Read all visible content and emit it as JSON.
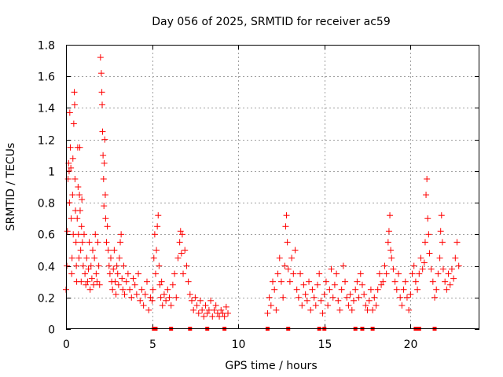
{
  "chart_data": {
    "type": "scatter",
    "title": "Day 056 of 2025, SRMTID for receiver ac59",
    "xlabel": "GPS time / hours",
    "ylabel": "SRMTID / TECUs",
    "xlim": [
      0,
      24
    ],
    "ylim": [
      0,
      1.8
    ],
    "xticks": [
      0,
      5,
      10,
      15,
      20
    ],
    "xtick_labels": [
      "0",
      "5",
      "10",
      "15",
      "20"
    ],
    "yticks": [
      0,
      0.2,
      0.4,
      0.6,
      0.8,
      1,
      1.2,
      1.4,
      1.6,
      1.8
    ],
    "ytick_labels": [
      "0",
      "0.2",
      "0.4",
      "0.6",
      "0.8",
      "1",
      "1.2",
      "1.4",
      "1.6",
      "1.8"
    ],
    "grid": true,
    "marker": "plus",
    "color": "#ff0000",
    "series": [
      {
        "name": "SRMTID",
        "points": [
          [
            0.0,
            0.25
          ],
          [
            0.05,
            0.4
          ],
          [
            0.08,
            0.62
          ],
          [
            0.12,
            0.95
          ],
          [
            0.15,
            1.05
          ],
          [
            0.18,
            1.0
          ],
          [
            0.2,
            0.8
          ],
          [
            0.22,
            1.37
          ],
          [
            0.25,
            1.15
          ],
          [
            0.28,
            1.02
          ],
          [
            0.3,
            0.7
          ],
          [
            0.33,
            0.35
          ],
          [
            0.35,
            0.45
          ],
          [
            0.38,
            0.85
          ],
          [
            0.4,
            1.08
          ],
          [
            0.42,
            0.6
          ],
          [
            0.45,
            1.3
          ],
          [
            0.48,
            1.5
          ],
          [
            0.5,
            1.42
          ],
          [
            0.52,
            0.95
          ],
          [
            0.55,
            0.75
          ],
          [
            0.58,
            0.55
          ],
          [
            0.6,
            0.4
          ],
          [
            0.62,
            0.3
          ],
          [
            0.65,
            0.7
          ],
          [
            0.68,
            1.15
          ],
          [
            0.7,
            0.9
          ],
          [
            0.72,
            0.6
          ],
          [
            0.75,
            0.45
          ],
          [
            0.78,
            0.85
          ],
          [
            0.8,
            1.15
          ],
          [
            0.82,
            0.75
          ],
          [
            0.85,
            0.5
          ],
          [
            0.88,
            0.3
          ],
          [
            0.9,
            0.65
          ],
          [
            0.92,
            0.82
          ],
          [
            0.95,
            0.55
          ],
          [
            1.0,
            0.4
          ],
          [
            1.05,
            0.6
          ],
          [
            1.1,
            0.35
          ],
          [
            1.15,
            0.28
          ],
          [
            1.2,
            0.45
          ],
          [
            1.25,
            0.3
          ],
          [
            1.3,
            0.38
          ],
          [
            1.35,
            0.55
          ],
          [
            1.4,
            0.25
          ],
          [
            1.45,
            0.4
          ],
          [
            1.5,
            0.32
          ],
          [
            1.55,
            0.5
          ],
          [
            1.6,
            0.28
          ],
          [
            1.65,
            0.45
          ],
          [
            1.7,
            0.6
          ],
          [
            1.75,
            0.35
          ],
          [
            1.8,
            0.3
          ],
          [
            1.85,
            0.55
          ],
          [
            1.9,
            0.4
          ],
          [
            1.95,
            0.28
          ],
          [
            2.0,
            1.72
          ],
          [
            2.05,
            1.62
          ],
          [
            2.08,
            1.5
          ],
          [
            2.1,
            1.42
          ],
          [
            2.12,
            1.25
          ],
          [
            2.15,
            1.1
          ],
          [
            2.18,
            0.95
          ],
          [
            2.2,
            0.78
          ],
          [
            2.22,
            1.05
          ],
          [
            2.25,
            1.2
          ],
          [
            2.28,
            0.85
          ],
          [
            2.3,
            0.7
          ],
          [
            2.35,
            0.55
          ],
          [
            2.4,
            0.65
          ],
          [
            2.45,
            0.5
          ],
          [
            2.5,
            0.4
          ],
          [
            2.55,
            0.35
          ],
          [
            2.6,
            0.45
          ],
          [
            2.65,
            0.3
          ],
          [
            2.7,
            0.25
          ],
          [
            2.75,
            0.38
          ],
          [
            2.8,
            0.5
          ],
          [
            2.85,
            0.3
          ],
          [
            2.9,
            0.22
          ],
          [
            2.95,
            0.4
          ],
          [
            3.0,
            0.35
          ],
          [
            3.05,
            0.28
          ],
          [
            3.1,
            0.45
          ],
          [
            3.15,
            0.55
          ],
          [
            3.2,
            0.6
          ],
          [
            3.25,
            0.32
          ],
          [
            3.3,
            0.25
          ],
          [
            3.35,
            0.4
          ],
          [
            3.4,
            0.22
          ],
          [
            3.5,
            0.3
          ],
          [
            3.6,
            0.35
          ],
          [
            3.7,
            0.25
          ],
          [
            3.8,
            0.2
          ],
          [
            3.9,
            0.32
          ],
          [
            4.0,
            0.28
          ],
          [
            4.1,
            0.22
          ],
          [
            4.2,
            0.35
          ],
          [
            4.3,
            0.18
          ],
          [
            4.4,
            0.25
          ],
          [
            4.5,
            0.15
          ],
          [
            4.6,
            0.22
          ],
          [
            4.7,
            0.3
          ],
          [
            4.8,
            0.12
          ],
          [
            4.9,
            0.2
          ],
          [
            5.0,
            0.18
          ],
          [
            5.05,
            0.25
          ],
          [
            5.1,
            0.45
          ],
          [
            5.15,
            0.6
          ],
          [
            5.2,
            0.35
          ],
          [
            5.25,
            0.5
          ],
          [
            5.3,
            0.65
          ],
          [
            5.35,
            0.72
          ],
          [
            5.4,
            0.4
          ],
          [
            5.45,
            0.28
          ],
          [
            5.5,
            0.2
          ],
          [
            5.55,
            0.3
          ],
          [
            5.6,
            0.15
          ],
          [
            5.7,
            0.22
          ],
          [
            5.8,
            0.18
          ],
          [
            5.9,
            0.25
          ],
          [
            6.0,
            0.2
          ],
          [
            6.1,
            0.15
          ],
          [
            6.2,
            0.28
          ],
          [
            6.3,
            0.35
          ],
          [
            6.4,
            0.2
          ],
          [
            6.5,
            0.45
          ],
          [
            6.6,
            0.55
          ],
          [
            6.65,
            0.62
          ],
          [
            6.7,
            0.48
          ],
          [
            6.75,
            0.6
          ],
          [
            6.8,
            0.35
          ],
          [
            6.9,
            0.5
          ],
          [
            7.0,
            0.4
          ],
          [
            7.1,
            0.3
          ],
          [
            7.2,
            0.22
          ],
          [
            7.3,
            0.18
          ],
          [
            7.4,
            0.12
          ],
          [
            7.5,
            0.2
          ],
          [
            7.6,
            0.15
          ],
          [
            7.7,
            0.1
          ],
          [
            7.8,
            0.18
          ],
          [
            7.9,
            0.12
          ],
          [
            8.0,
            0.08
          ],
          [
            8.1,
            0.15
          ],
          [
            8.2,
            0.1
          ],
          [
            8.3,
            0.12
          ],
          [
            8.4,
            0.18
          ],
          [
            8.5,
            0.08
          ],
          [
            8.6,
            0.12
          ],
          [
            8.7,
            0.15
          ],
          [
            8.8,
            0.1
          ],
          [
            8.9,
            0.08
          ],
          [
            9.0,
            0.12
          ],
          [
            9.1,
            0.1
          ],
          [
            9.2,
            0.08
          ],
          [
            9.3,
            0.14
          ],
          [
            9.4,
            0.1
          ],
          [
            11.7,
            0.1
          ],
          [
            11.8,
            0.2
          ],
          [
            11.9,
            0.15
          ],
          [
            12.0,
            0.3
          ],
          [
            12.1,
            0.25
          ],
          [
            12.2,
            0.12
          ],
          [
            12.3,
            0.35
          ],
          [
            12.4,
            0.45
          ],
          [
            12.5,
            0.3
          ],
          [
            12.6,
            0.2
          ],
          [
            12.7,
            0.4
          ],
          [
            12.75,
            0.65
          ],
          [
            12.8,
            0.72
          ],
          [
            12.85,
            0.55
          ],
          [
            12.9,
            0.38
          ],
          [
            13.0,
            0.3
          ],
          [
            13.1,
            0.45
          ],
          [
            13.2,
            0.35
          ],
          [
            13.3,
            0.5
          ],
          [
            13.4,
            0.25
          ],
          [
            13.5,
            0.2
          ],
          [
            13.6,
            0.35
          ],
          [
            13.7,
            0.15
          ],
          [
            13.8,
            0.28
          ],
          [
            13.9,
            0.22
          ],
          [
            14.0,
            0.18
          ],
          [
            14.1,
            0.3
          ],
          [
            14.2,
            0.12
          ],
          [
            14.3,
            0.25
          ],
          [
            14.4,
            0.2
          ],
          [
            14.5,
            0.15
          ],
          [
            14.6,
            0.28
          ],
          [
            14.7,
            0.35
          ],
          [
            14.8,
            0.18
          ],
          [
            14.9,
            0.1
          ],
          [
            15.0,
            0.22
          ],
          [
            15.1,
            0.3
          ],
          [
            15.2,
            0.15
          ],
          [
            15.3,
            0.25
          ],
          [
            15.4,
            0.38
          ],
          [
            15.5,
            0.2
          ],
          [
            15.6,
            0.28
          ],
          [
            15.7,
            0.35
          ],
          [
            15.8,
            0.18
          ],
          [
            15.9,
            0.12
          ],
          [
            16.0,
            0.25
          ],
          [
            16.1,
            0.4
          ],
          [
            16.2,
            0.3
          ],
          [
            16.3,
            0.2
          ],
          [
            16.4,
            0.15
          ],
          [
            16.5,
            0.22
          ],
          [
            16.6,
            0.12
          ],
          [
            16.7,
            0.18
          ],
          [
            16.8,
            0.25
          ],
          [
            16.9,
            0.3
          ],
          [
            17.0,
            0.2
          ],
          [
            17.1,
            0.35
          ],
          [
            17.2,
            0.28
          ],
          [
            17.3,
            0.22
          ],
          [
            17.4,
            0.15
          ],
          [
            17.5,
            0.12
          ],
          [
            17.6,
            0.18
          ],
          [
            17.7,
            0.25
          ],
          [
            17.8,
            0.12
          ],
          [
            17.9,
            0.2
          ],
          [
            18.0,
            0.15
          ],
          [
            18.1,
            0.25
          ],
          [
            18.2,
            0.35
          ],
          [
            18.3,
            0.28
          ],
          [
            18.4,
            0.3
          ],
          [
            18.5,
            0.4
          ],
          [
            18.6,
            0.35
          ],
          [
            18.7,
            0.55
          ],
          [
            18.75,
            0.62
          ],
          [
            18.8,
            0.72
          ],
          [
            18.85,
            0.5
          ],
          [
            18.9,
            0.45
          ],
          [
            19.0,
            0.38
          ],
          [
            19.1,
            0.3
          ],
          [
            19.2,
            0.25
          ],
          [
            19.3,
            0.35
          ],
          [
            19.4,
            0.2
          ],
          [
            19.5,
            0.15
          ],
          [
            19.6,
            0.25
          ],
          [
            19.7,
            0.3
          ],
          [
            19.8,
            0.2
          ],
          [
            19.9,
            0.12
          ],
          [
            20.0,
            0.22
          ],
          [
            20.1,
            0.35
          ],
          [
            20.2,
            0.4
          ],
          [
            20.3,
            0.3
          ],
          [
            20.4,
            0.25
          ],
          [
            20.5,
            0.35
          ],
          [
            20.6,
            0.45
          ],
          [
            20.7,
            0.38
          ],
          [
            20.8,
            0.42
          ],
          [
            20.85,
            0.55
          ],
          [
            20.9,
            0.85
          ],
          [
            20.95,
            0.95
          ],
          [
            21.0,
            0.7
          ],
          [
            21.05,
            0.6
          ],
          [
            21.1,
            0.48
          ],
          [
            21.2,
            0.38
          ],
          [
            21.3,
            0.3
          ],
          [
            21.4,
            0.2
          ],
          [
            21.5,
            0.25
          ],
          [
            21.6,
            0.35
          ],
          [
            21.7,
            0.45
          ],
          [
            21.75,
            0.62
          ],
          [
            21.8,
            0.72
          ],
          [
            21.85,
            0.55
          ],
          [
            21.9,
            0.38
          ],
          [
            22.0,
            0.3
          ],
          [
            22.1,
            0.25
          ],
          [
            22.2,
            0.35
          ],
          [
            22.3,
            0.28
          ],
          [
            22.4,
            0.38
          ],
          [
            22.5,
            0.32
          ],
          [
            22.6,
            0.45
          ],
          [
            22.7,
            0.55
          ],
          [
            22.8,
            0.4
          ]
        ]
      }
    ],
    "zero_markers_x": [
      5.1,
      5.2,
      6.1,
      7.2,
      8.2,
      9.2,
      11.7,
      12.9,
      14.7,
      15.0,
      16.8,
      17.2,
      17.8,
      20.3,
      20.5,
      21.4
    ]
  }
}
